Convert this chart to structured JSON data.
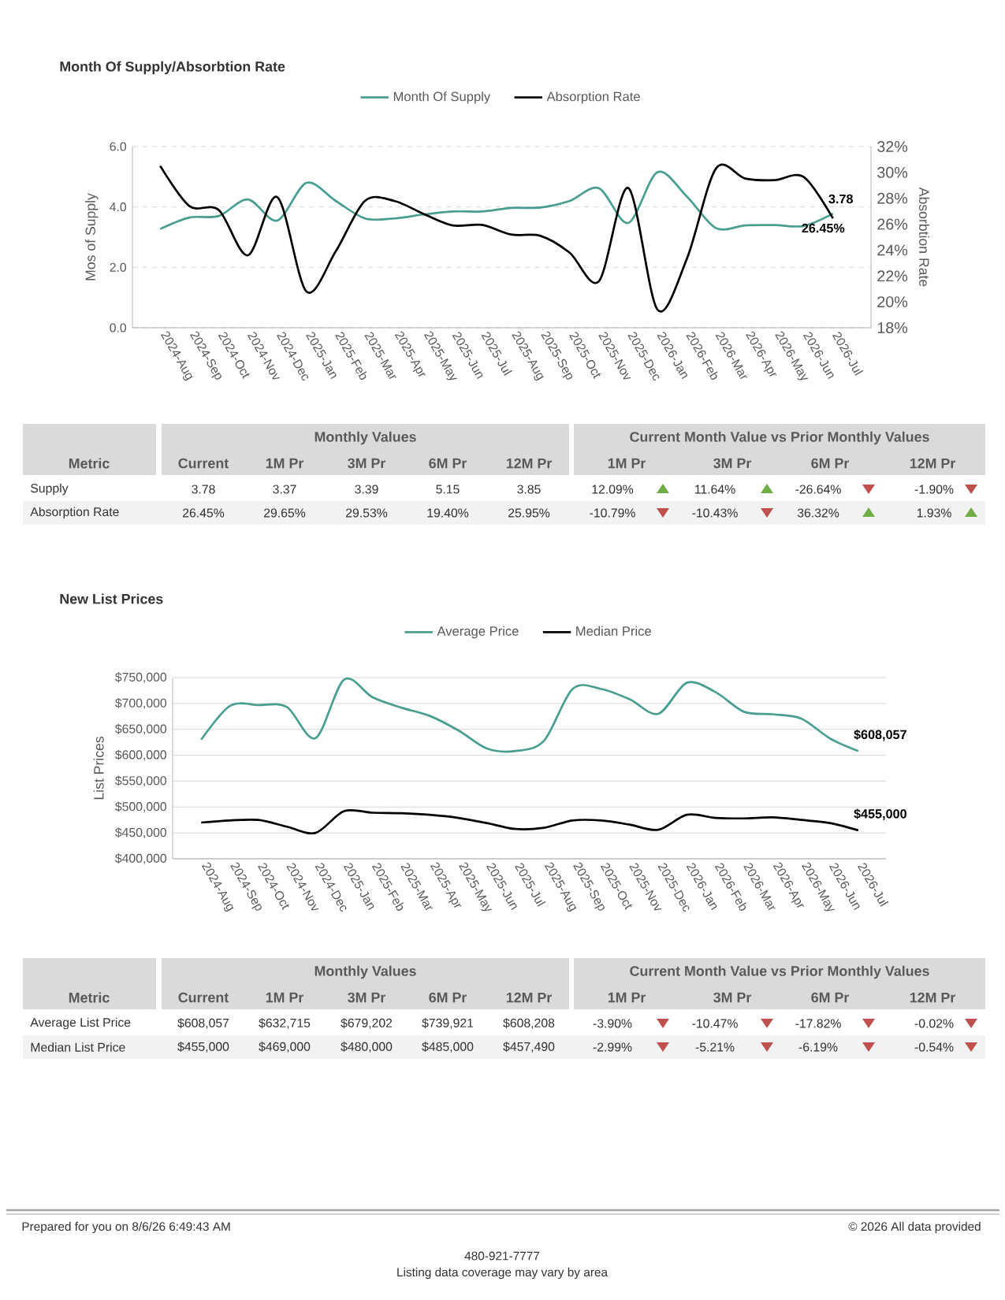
{
  "chart_data": [
    {
      "type": "line",
      "title": "Month Of Supply/Absorbtion Rate",
      "ylabel": "Mos of Supply",
      "y2label": "Absorbtion Rate",
      "categories": [
        "2024-Aug",
        "2024-Sep",
        "2024-Oct",
        "2024-Nov",
        "2024-Dec",
        "2025-Jan",
        "2025-Feb",
        "2025-Mar",
        "2025-Apr",
        "2025-May",
        "2025-Jun",
        "2025-Jul",
        "2025-Aug",
        "2025-Sep",
        "2025-Oct",
        "2025-Nov",
        "2025-Dec",
        "2026-Jan",
        "2026-Feb",
        "2026-Mar",
        "2026-Apr",
        "2026-May",
        "2026-Jun",
        "2026-Jul"
      ],
      "series": [
        {
          "name": "Month Of Supply",
          "color": "#4a9e91",
          "values": [
            3.27,
            3.65,
            3.7,
            4.25,
            3.55,
            4.8,
            4.2,
            3.62,
            3.62,
            3.75,
            3.85,
            3.85,
            3.97,
            3.98,
            4.2,
            4.62,
            3.47,
            5.15,
            4.35,
            3.3,
            3.39,
            3.4,
            3.37,
            3.78
          ],
          "value_labels": [
            null,
            null,
            null,
            null,
            null,
            null,
            null,
            null,
            null,
            null,
            null,
            null,
            null,
            null,
            null,
            null,
            null,
            null,
            null,
            null,
            null,
            null,
            null,
            "3.78"
          ]
        },
        {
          "name": "Absorption Rate",
          "color": "#000000",
          "axis": "y2",
          "values": [
            30.5,
            27.4,
            27.1,
            23.6,
            28.1,
            20.8,
            23.9,
            27.8,
            27.8,
            26.8,
            25.9,
            25.95,
            25.2,
            25.1,
            23.8,
            21.6,
            28.8,
            19.4,
            23.3,
            30.3,
            29.53,
            29.4,
            29.65,
            26.45
          ],
          "value_labels": [
            null,
            null,
            null,
            null,
            null,
            null,
            null,
            null,
            null,
            null,
            null,
            null,
            null,
            null,
            null,
            null,
            null,
            null,
            null,
            null,
            null,
            null,
            null,
            "26.45%"
          ]
        }
      ],
      "ylim": [
        0,
        6
      ],
      "yticks": [
        {
          "value": 0,
          "label": "0.0"
        },
        {
          "value": 2,
          "label": "2.0"
        },
        {
          "value": 4,
          "label": "4.0"
        },
        {
          "value": 6,
          "label": "6.0"
        }
      ],
      "y2lim": [
        18,
        32
      ],
      "y2ticks": [
        {
          "value": 18,
          "label": "18%"
        },
        {
          "value": 20,
          "label": "20%"
        },
        {
          "value": 22,
          "label": "22%"
        },
        {
          "value": 24,
          "label": "24%"
        },
        {
          "value": 26,
          "label": "26%"
        },
        {
          "value": 28,
          "label": "28%"
        },
        {
          "value": 30,
          "label": "30%"
        },
        {
          "value": 32,
          "label": "32%"
        }
      ],
      "grid": "y",
      "legend": "top"
    },
    {
      "type": "other",
      "annotations": [
        "Monthly Values",
        "Current Month Value vs Prior Monthly Values"
      ],
      "categories": [
        "Metric",
        "Current",
        "1M Pr",
        "3M Pr",
        "6M Pr",
        "12M Pr",
        "1M Pr",
        "3M Pr",
        "6M Pr",
        "12M Pr"
      ],
      "y_categories": [
        "Supply",
        "Absorption Rate"
      ],
      "colors": [
        [
          "#70ad47",
          "#70ad47",
          "#c0504d",
          "#c0504d"
        ],
        [
          "#c0504d",
          "#c0504d",
          "#70ad47",
          "#70ad47"
        ]
      ],
      "cell_labels": [
        [
          "3.78",
          "3.37",
          "3.39",
          "5.15",
          "3.85",
          "12.09%",
          "11.64%",
          "-26.64%",
          "-1.90%"
        ],
        [
          "26.45%",
          "29.65%",
          "29.53%",
          "19.40%",
          "25.95%",
          "-10.79%",
          "-10.43%",
          "36.32%",
          "1.93%"
        ]
      ]
    },
    {
      "type": "line",
      "title": "New List Prices",
      "ylabel": "List Prices",
      "categories": [
        "2024-Aug",
        "2024-Sep",
        "2024-Oct",
        "2024-Nov",
        "2024-Dec",
        "2025-Jan",
        "2025-Feb",
        "2025-Mar",
        "2025-Apr",
        "2025-May",
        "2025-Jun",
        "2025-Jul",
        "2025-Aug",
        "2025-Sep",
        "2025-Oct",
        "2025-Nov",
        "2025-Dec",
        "2026-Jan",
        "2026-Feb",
        "2026-Mar",
        "2026-Apr",
        "2026-May",
        "2026-Jun",
        "2026-Jul"
      ],
      "series": [
        {
          "name": "Average Price",
          "color": "#4a9e91",
          "values": [
            630000,
            695000,
            697000,
            693000,
            633000,
            746000,
            712000,
            692000,
            676000,
            648000,
            613000,
            608208,
            628000,
            728000,
            728000,
            708000,
            680000,
            739921,
            722000,
            684000,
            679202,
            671000,
            632715,
            608057
          ],
          "value_labels": [
            null,
            null,
            null,
            null,
            null,
            null,
            null,
            null,
            null,
            null,
            null,
            null,
            null,
            null,
            null,
            null,
            null,
            null,
            null,
            null,
            null,
            null,
            null,
            "$608,057"
          ]
        },
        {
          "name": "Median Price",
          "color": "#000000",
          "values": [
            470000,
            474000,
            475000,
            462000,
            450000,
            492000,
            489000,
            488000,
            485000,
            479000,
            469000,
            457490,
            460000,
            474000,
            474000,
            466000,
            456000,
            485000,
            479000,
            478000,
            480000,
            475000,
            469000,
            455000
          ],
          "value_labels": [
            null,
            null,
            null,
            null,
            null,
            null,
            null,
            null,
            null,
            null,
            null,
            null,
            null,
            null,
            null,
            null,
            null,
            null,
            null,
            null,
            null,
            null,
            null,
            "$455,000"
          ]
        }
      ],
      "ylim": [
        400000,
        750000
      ],
      "yticks": [
        {
          "value": 400000,
          "label": "$400,000"
        },
        {
          "value": 450000,
          "label": "$450,000"
        },
        {
          "value": 500000,
          "label": "$500,000"
        },
        {
          "value": 550000,
          "label": "$550,000"
        },
        {
          "value": 600000,
          "label": "$600,000"
        },
        {
          "value": 650000,
          "label": "$650,000"
        },
        {
          "value": 700000,
          "label": "$700,000"
        },
        {
          "value": 750000,
          "label": "$750,000"
        }
      ],
      "grid": "y",
      "legend": "top"
    },
    {
      "type": "other",
      "annotations": [
        "Monthly Values",
        "Current Month Value vs Prior Monthly Values"
      ],
      "categories": [
        "Metric",
        "Current",
        "1M Pr",
        "3M Pr",
        "6M Pr",
        "12M Pr",
        "1M Pr",
        "3M Pr",
        "6M Pr",
        "12M Pr"
      ],
      "y_categories": [
        "Average List Price",
        "Median List Price"
      ],
      "colors": [
        [
          "#c0504d",
          "#c0504d",
          "#c0504d",
          "#c0504d"
        ],
        [
          "#c0504d",
          "#c0504d",
          "#c0504d",
          "#c0504d"
        ]
      ],
      "cell_labels": [
        [
          "$608,057",
          "$632,715",
          "$679,202",
          "$739,921",
          "$608,208",
          "-3.90%",
          "-10.47%",
          "-17.82%",
          "-0.02%"
        ],
        [
          "$455,000",
          "$469,000",
          "$480,000",
          "$485,000",
          "$457,490",
          "-2.99%",
          "-5.21%",
          "-6.19%",
          "-0.54%"
        ]
      ]
    },
    {
      "type": "other",
      "annotations": [
        "Prepared for you on 8/6/26 6:49:43 AM",
        "© 2026 All data provided",
        "480-921-7777",
        "Listing data coverage may vary by area"
      ]
    }
  ]
}
